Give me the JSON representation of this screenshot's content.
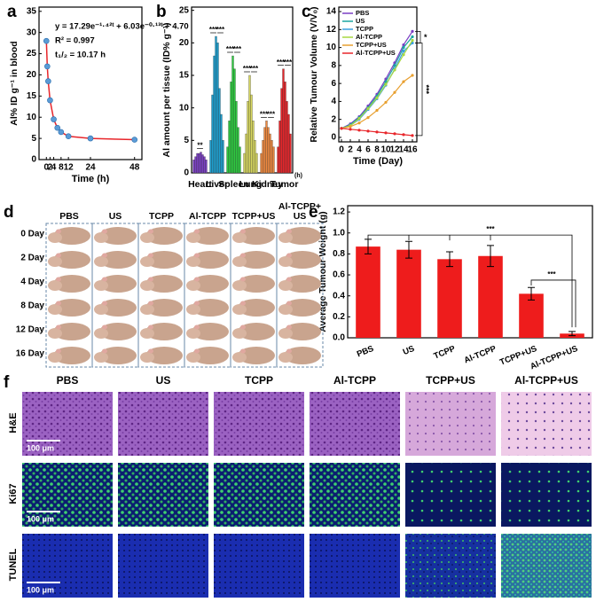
{
  "panel_labels": [
    "a",
    "b",
    "c",
    "d",
    "e",
    "f"
  ],
  "chart_data": [
    {
      "type": "scatter",
      "x": [
        0,
        0.5,
        1,
        2,
        4,
        6,
        8,
        12,
        24,
        48
      ],
      "values": [
        28,
        22,
        18.5,
        14,
        9.5,
        7.5,
        6.5,
        5.5,
        5,
        4.7
      ],
      "color": "#5b9bd5",
      "fit_color": "#e8262b",
      "xlim": [
        -4,
        52
      ],
      "ylim": [
        0,
        36
      ],
      "xticks": [
        0,
        2,
        4,
        8,
        12,
        24,
        48
      ],
      "yticks": [
        0,
        5,
        10,
        15,
        20,
        25,
        30,
        35
      ],
      "xlabel": "Time (h)",
      "ylabel": "Al% ID g⁻¹ in blood",
      "annotations": [
        "y = 17.29e⁻¹·⁴²ᵗ + 6.03e⁻⁰·¹³ᵗ + 4.70",
        "R² = 0.997",
        "t₁/₂ = 10.17 h"
      ]
    },
    {
      "type": "bar",
      "categories": [
        "Heart",
        "Liver",
        "Spleen",
        "Lung",
        "Kidney",
        "Tumor"
      ],
      "values": [
        [
          2,
          2.5,
          3,
          3,
          3.2,
          2.8,
          2.5,
          2
        ],
        [
          5,
          12,
          18,
          21,
          20,
          13,
          9,
          5
        ],
        [
          4,
          8,
          14,
          18,
          16,
          11,
          7,
          4
        ],
        [
          3,
          6,
          11,
          15,
          12,
          8,
          5,
          3
        ],
        [
          3,
          5,
          7,
          8,
          7,
          6,
          5,
          4
        ],
        [
          4,
          8,
          13,
          16,
          14,
          11,
          9,
          6
        ]
      ],
      "colors": [
        "#7b3fc4",
        "#1ea0d0",
        "#2ecc40",
        "#d8d860",
        "#f08a40",
        "#e8262b"
      ],
      "ylim": [
        0,
        25.5
      ],
      "yticks": [
        0,
        5,
        10,
        15,
        20,
        25
      ],
      "ylabel": "Al amount per tissue (ID% g⁻¹)",
      "x_unit": "(h)",
      "significance": [
        [
          "**"
        ],
        [
          "***",
          "***"
        ],
        [
          "***",
          "***"
        ],
        [
          "***",
          "***"
        ],
        [
          "***",
          "***"
        ],
        [
          "***",
          "***"
        ]
      ]
    },
    {
      "type": "line",
      "x": [
        0,
        2,
        4,
        6,
        8,
        10,
        12,
        14,
        16
      ],
      "series": [
        {
          "name": "PBS",
          "color": "#7b3fc4",
          "values": [
            1,
            1.5,
            2.3,
            3.5,
            4.8,
            6.5,
            8.3,
            10.3,
            11.8
          ]
        },
        {
          "name": "US",
          "color": "#1aa6a0",
          "values": [
            1,
            1.4,
            2.2,
            3.3,
            4.6,
            6.2,
            8,
            10,
            11.2
          ]
        },
        {
          "name": "TCPP",
          "color": "#3aa0e0",
          "values": [
            1,
            1.3,
            2,
            3.1,
            4.3,
            5.8,
            7.6,
            9.6,
            10.5
          ]
        },
        {
          "name": "Al-TCPP",
          "color": "#a8d840",
          "values": [
            1,
            1.3,
            2.1,
            3.2,
            4.4,
            5.9,
            7.5,
            9.2,
            10.8
          ]
        },
        {
          "name": "TCPP+US",
          "color": "#e8a030",
          "values": [
            1,
            1.2,
            1.6,
            2.2,
            3,
            3.9,
            5,
            6.2,
            6.9
          ]
        },
        {
          "name": "Al-TCPP+US",
          "color": "#e8262b",
          "values": [
            1,
            0.9,
            0.8,
            0.7,
            0.6,
            0.5,
            0.4,
            0.3,
            0.2
          ]
        }
      ],
      "xlim": [
        -0.6,
        17
      ],
      "ylim": [
        -0.5,
        14.5
      ],
      "xticks": [
        0,
        2,
        4,
        6,
        8,
        10,
        12,
        14,
        16
      ],
      "yticks": [
        0,
        2,
        4,
        6,
        8,
        10,
        12,
        14
      ],
      "xlabel": "Time (Day)",
      "ylabel": "Relative Tumour Volume (V/V₀)",
      "legend": "top-left",
      "significance": [
        "*",
        "***"
      ]
    },
    {
      "type": "bar",
      "categories": [
        "PBS",
        "US",
        "TCPP",
        "Al-TCPP",
        "TCPP+US",
        "Al-TCPP+US"
      ],
      "values": [
        0.87,
        0.84,
        0.75,
        0.78,
        0.42,
        0.04
      ],
      "errors": [
        0.07,
        0.08,
        0.07,
        0.1,
        0.06,
        0.02
      ],
      "color": "#ee1c1c",
      "ylim": [
        0,
        1.26
      ],
      "yticks": [
        {
          "value": 0,
          "label": "0.0"
        },
        0.2,
        0.4,
        0.6,
        0.8,
        {
          "value": 1,
          "label": "1.0"
        },
        {
          "value": 1.2,
          "label": "1.2"
        }
      ],
      "ylabel": "Average Tumour Weight (g)",
      "significance": [
        "***",
        "***"
      ]
    }
  ],
  "mouse_panel": {
    "columns": [
      "PBS",
      "US",
      "TCPP",
      "Al-TCPP",
      "TCPP+US",
      "Al-TCPP+ US"
    ],
    "rows": [
      "0 Day",
      "2 Day",
      "4 Day",
      "8 Day",
      "12 Day",
      "16 Day"
    ]
  },
  "histology": {
    "columns": [
      "PBS",
      "US",
      "TCPP",
      "Al-TCPP",
      "TCPP+US",
      "Al-TCPP+US"
    ],
    "rows": [
      "H&E",
      "Ki67",
      "TUNEL"
    ],
    "scale_bar": "100 μm"
  }
}
